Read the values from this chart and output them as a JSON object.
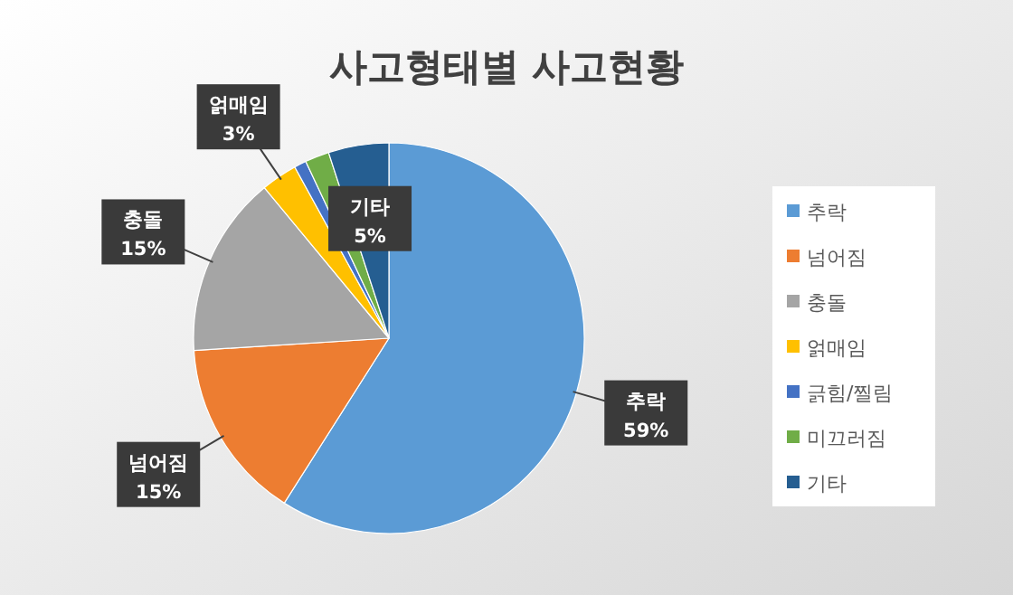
{
  "chart_data": {
    "type": "pie",
    "title": "사고형태별 사고현황",
    "categories": [
      "추락",
      "넘어짐",
      "충돌",
      "얽매임",
      "긁힘/찔림",
      "미끄러짐",
      "기타"
    ],
    "values": [
      59,
      15,
      15,
      3,
      1,
      2,
      5
    ],
    "value_labels": [
      "59%",
      "15%",
      "15%",
      "3%",
      null,
      null,
      "5%"
    ],
    "colors": [
      "#5b9bd5",
      "#ed7d31",
      "#a5a5a5",
      "#ffc000",
      "#4472c4",
      "#70ad47",
      "#255e91"
    ],
    "legend": "right"
  }
}
